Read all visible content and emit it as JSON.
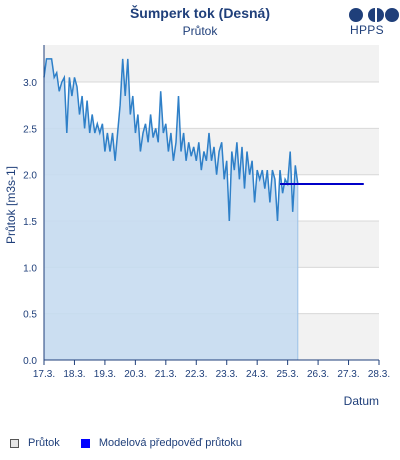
{
  "header": {
    "title": "Šumperk tok (Desná)",
    "subtitle": "Průtok",
    "logo_text": "HPPS"
  },
  "legend": {
    "items": [
      "Průtok",
      "Modelová předpověď průtoku"
    ]
  },
  "colors": {
    "observed_line": "#2f80c8",
    "observed_fill": "#c6dcf1",
    "forecast_line": "#0000c8",
    "band": "#f2f2f2",
    "axis": "#1f3f7a"
  },
  "chart_data": {
    "type": "line",
    "title": "Šumperk tok (Desná)",
    "subtitle": "Průtok",
    "xlabel": "Datum",
    "ylabel": "Průtok [m3s-1]",
    "x_ticks": [
      "17.3.",
      "18.3.",
      "19.3.",
      "20.3.",
      "21.3.",
      "22.3.",
      "23.3.",
      "24.3.",
      "25.3.",
      "26.3.",
      "27.3.",
      "28.3."
    ],
    "xlim": [
      "17.3.",
      "28.3."
    ],
    "ylim": [
      0,
      3.4
    ],
    "y_ticks": [
      0.0,
      0.5,
      1.0,
      1.5,
      2.0,
      2.5,
      3.0
    ],
    "grid": true,
    "legend_position": "bottom-left",
    "series": [
      {
        "name": "Průtok",
        "type": "area",
        "points": [
          [
            "17.3. 00:00",
            3.05
          ],
          [
            "17.3. 02:00",
            3.25
          ],
          [
            "17.3. 06:00",
            3.25
          ],
          [
            "17.3. 08:00",
            3.05
          ],
          [
            "17.3. 10:00",
            3.1
          ],
          [
            "17.3. 12:00",
            2.9
          ],
          [
            "17.3. 14:00",
            3.0
          ],
          [
            "17.3. 16:00",
            3.05
          ],
          [
            "17.3. 18:00",
            2.45
          ],
          [
            "17.3. 20:00",
            3.05
          ],
          [
            "17.3. 22:00",
            2.85
          ],
          [
            "18.3. 00:00",
            3.05
          ],
          [
            "18.3. 02:00",
            2.95
          ],
          [
            "18.3. 04:00",
            2.65
          ],
          [
            "18.3. 06:00",
            2.85
          ],
          [
            "18.3. 08:00",
            2.5
          ],
          [
            "18.3. 10:00",
            2.8
          ],
          [
            "18.3. 12:00",
            2.45
          ],
          [
            "18.3. 14:00",
            2.65
          ],
          [
            "18.3. 16:00",
            2.45
          ],
          [
            "18.3. 18:00",
            2.55
          ],
          [
            "18.3. 20:00",
            2.45
          ],
          [
            "18.3. 22:00",
            2.55
          ],
          [
            "19.3. 00:00",
            2.25
          ],
          [
            "19.3. 02:00",
            2.45
          ],
          [
            "19.3. 04:00",
            2.25
          ],
          [
            "19.3. 06:00",
            2.45
          ],
          [
            "19.3. 08:00",
            2.15
          ],
          [
            "19.3. 10:00",
            2.45
          ],
          [
            "19.3. 12:00",
            2.75
          ],
          [
            "19.3. 14:00",
            3.25
          ],
          [
            "19.3. 16:00",
            2.85
          ],
          [
            "19.3. 18:00",
            3.25
          ],
          [
            "19.3. 20:00",
            2.65
          ],
          [
            "19.3. 22:00",
            2.85
          ],
          [
            "20.3. 00:00",
            2.45
          ],
          [
            "20.3. 02:00",
            2.65
          ],
          [
            "20.3. 04:00",
            2.25
          ],
          [
            "20.3. 06:00",
            2.45
          ],
          [
            "20.3. 08:00",
            2.55
          ],
          [
            "20.3. 10:00",
            2.35
          ],
          [
            "20.3. 12:00",
            2.65
          ],
          [
            "20.3. 14:00",
            2.4
          ],
          [
            "20.3. 16:00",
            2.5
          ],
          [
            "20.3. 18:00",
            2.35
          ],
          [
            "20.3. 20:00",
            2.9
          ],
          [
            "20.3. 22:00",
            2.45
          ],
          [
            "21.3. 00:00",
            2.55
          ],
          [
            "21.3. 02:00",
            2.25
          ],
          [
            "21.3. 04:00",
            2.45
          ],
          [
            "21.3. 06:00",
            2.15
          ],
          [
            "21.3. 08:00",
            2.35
          ],
          [
            "21.3. 10:00",
            2.85
          ],
          [
            "21.3. 12:00",
            2.25
          ],
          [
            "21.3. 14:00",
            2.45
          ],
          [
            "21.3. 16:00",
            2.15
          ],
          [
            "21.3. 18:00",
            2.35
          ],
          [
            "21.3. 20:00",
            2.2
          ],
          [
            "21.3. 22:00",
            2.3
          ],
          [
            "22.3. 00:00",
            2.15
          ],
          [
            "22.3. 02:00",
            2.35
          ],
          [
            "22.3. 04:00",
            2.05
          ],
          [
            "22.3. 06:00",
            2.25
          ],
          [
            "22.3. 08:00",
            2.15
          ],
          [
            "22.3. 10:00",
            2.45
          ],
          [
            "22.3. 12:00",
            2.15
          ],
          [
            "22.3. 14:00",
            2.3
          ],
          [
            "22.3. 16:00",
            2.0
          ],
          [
            "22.3. 18:00",
            2.25
          ],
          [
            "22.3. 20:00",
            2.35
          ],
          [
            "22.3. 22:00",
            1.95
          ],
          [
            "23.3. 00:00",
            2.15
          ],
          [
            "23.3. 02:00",
            1.5
          ],
          [
            "23.3. 04:00",
            2.25
          ],
          [
            "23.3. 06:00",
            2.05
          ],
          [
            "23.3. 08:00",
            2.35
          ],
          [
            "23.3. 10:00",
            1.95
          ],
          [
            "23.3. 12:00",
            2.3
          ],
          [
            "23.3. 14:00",
            1.85
          ],
          [
            "23.3. 16:00",
            2.25
          ],
          [
            "23.3. 18:00",
            2.0
          ],
          [
            "23.3. 20:00",
            2.15
          ],
          [
            "23.3. 22:00",
            1.7
          ],
          [
            "24.3. 00:00",
            2.05
          ],
          [
            "24.3. 02:00",
            1.95
          ],
          [
            "24.3. 04:00",
            2.05
          ],
          [
            "24.3. 06:00",
            1.85
          ],
          [
            "24.3. 08:00",
            2.05
          ],
          [
            "24.3. 10:00",
            1.7
          ],
          [
            "24.3. 12:00",
            2.05
          ],
          [
            "24.3. 14:00",
            1.95
          ],
          [
            "24.3. 16:00",
            1.5
          ],
          [
            "24.3. 18:00",
            2.05
          ],
          [
            "24.3. 20:00",
            1.8
          ],
          [
            "24.3. 22:00",
            1.95
          ],
          [
            "25.3. 00:00",
            1.9
          ],
          [
            "25.3. 02:00",
            2.25
          ],
          [
            "25.3. 04:00",
            1.6
          ],
          [
            "25.3. 06:00",
            2.1
          ],
          [
            "25.3. 08:00",
            1.9
          ]
        ]
      },
      {
        "name": "Modelová předpověď průtoku",
        "type": "line",
        "points": [
          [
            "24.3. 18:00",
            1.9
          ],
          [
            "27.3. 12:00",
            1.9
          ]
        ]
      }
    ]
  }
}
